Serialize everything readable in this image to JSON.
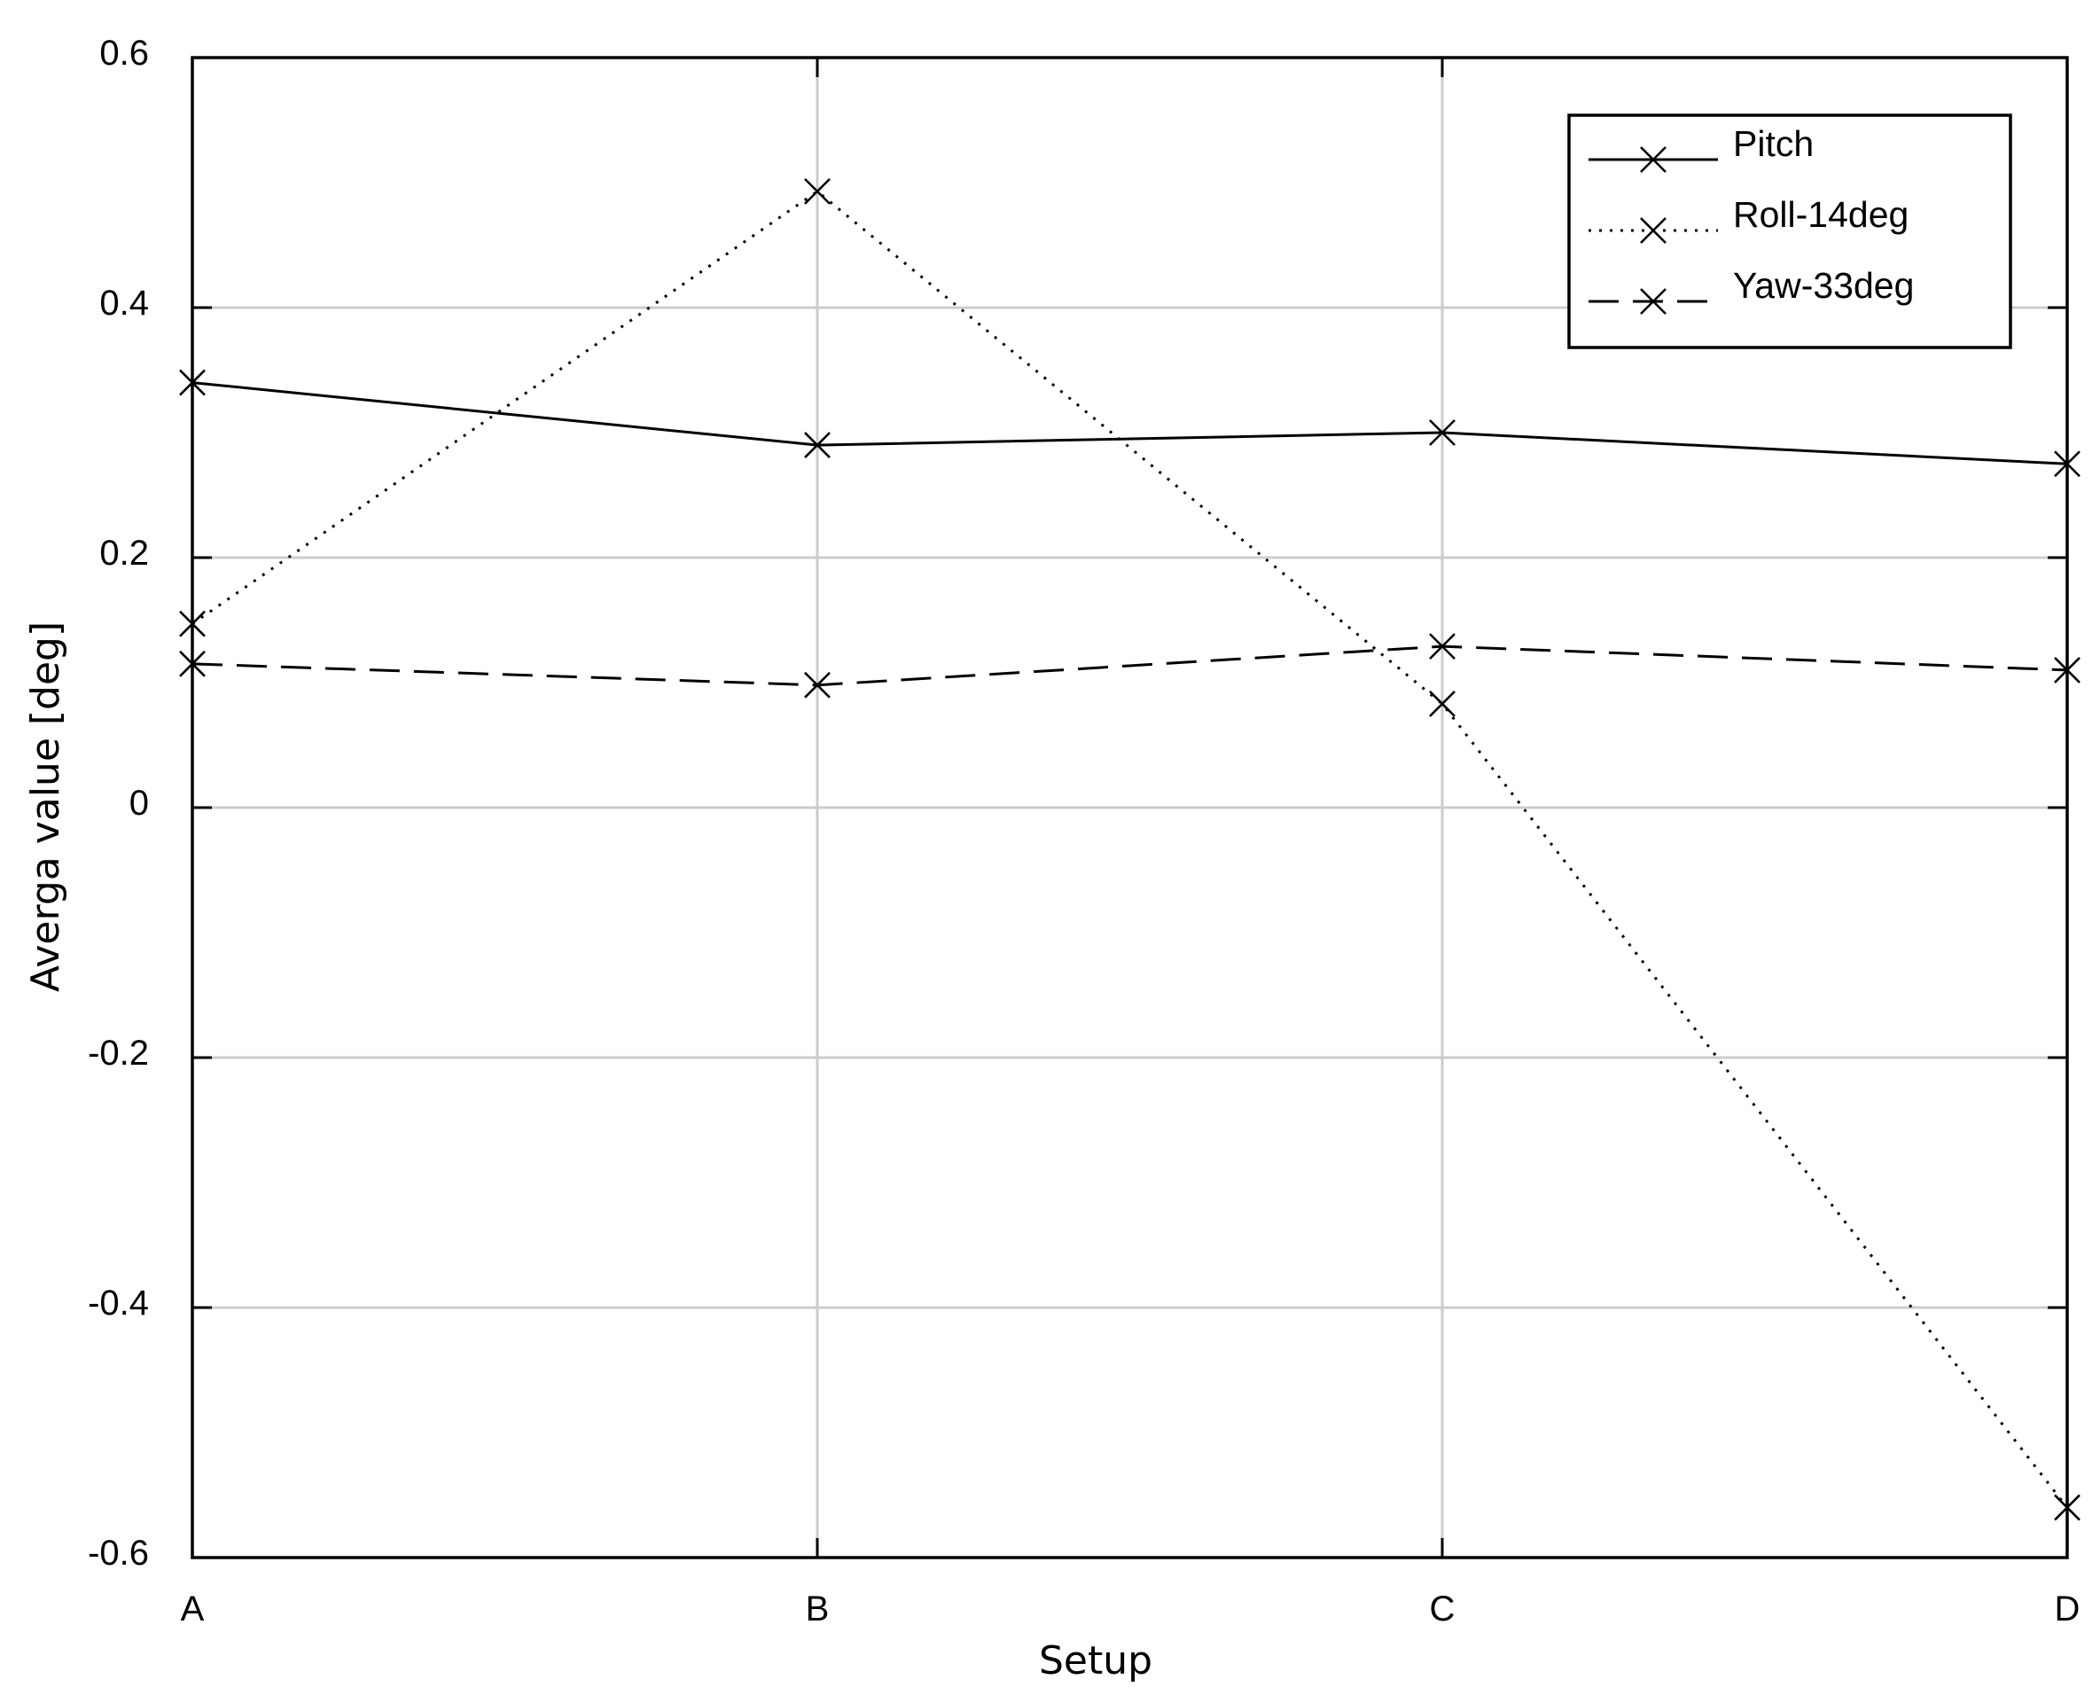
{
  "chart_data": {
    "type": "line",
    "title": "",
    "xlabel": "Setup",
    "ylabel": "Averga value [deg]",
    "categories": [
      "A",
      "B",
      "C",
      "D"
    ],
    "ylim": [
      -0.6,
      0.6
    ],
    "yticks": [
      0.6,
      0.4,
      0.2,
      0,
      -0.2,
      -0.4,
      -0.6
    ],
    "ytick_labels": [
      "0.6",
      "0.4",
      "0.2",
      "0",
      "-0.2",
      "-0.4",
      "-0.6"
    ],
    "grid": true,
    "legend_position": "top-right",
    "series": [
      {
        "name": "Pitch",
        "style": "solid",
        "marker": "x",
        "values": [
          0.34,
          0.29,
          0.3,
          0.275
        ]
      },
      {
        "name": "Roll-14deg",
        "style": "dotted",
        "marker": "x",
        "values": [
          0.147,
          0.493,
          0.083,
          -0.56
        ]
      },
      {
        "name": "Yaw-33deg",
        "style": "dashed",
        "marker": "x",
        "values": [
          0.115,
          0.098,
          0.129,
          0.11
        ]
      }
    ]
  }
}
